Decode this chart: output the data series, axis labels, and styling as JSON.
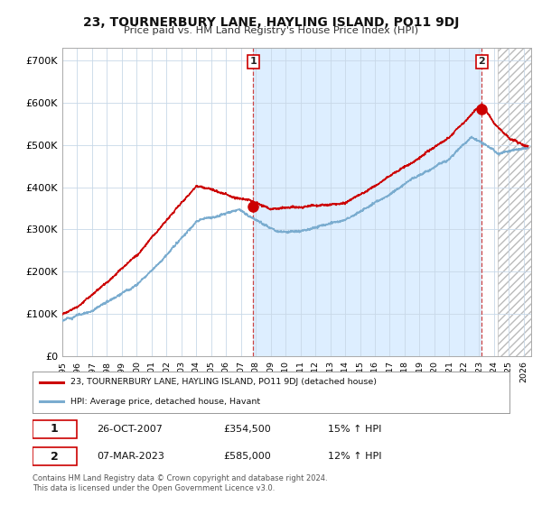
{
  "title": "23, TOURNERBURY LANE, HAYLING ISLAND, PO11 9DJ",
  "subtitle": "Price paid vs. HM Land Registry's House Price Index (HPI)",
  "ylabel_ticks": [
    "£0",
    "£100K",
    "£200K",
    "£300K",
    "£400K",
    "£500K",
    "£600K",
    "£700K"
  ],
  "ytick_values": [
    0,
    100000,
    200000,
    300000,
    400000,
    500000,
    600000,
    700000
  ],
  "ylim": [
    0,
    730000
  ],
  "xlim_start": 1995.0,
  "xlim_end": 2026.5,
  "sale1_x": 2007.82,
  "sale1_y": 354500,
  "sale2_x": 2023.18,
  "sale2_y": 585000,
  "sale1_label": "1",
  "sale2_label": "2",
  "annotation1_date": "26-OCT-2007",
  "annotation1_price": "£354,500",
  "annotation1_hpi": "15% ↑ HPI",
  "annotation2_date": "07-MAR-2023",
  "annotation2_price": "£585,000",
  "annotation2_hpi": "12% ↑ HPI",
  "legend_line1": "23, TOURNERBURY LANE, HAYLING ISLAND, PO11 9DJ (detached house)",
  "legend_line2": "HPI: Average price, detached house, Havant",
  "footer": "Contains HM Land Registry data © Crown copyright and database right 2024.\nThis data is licensed under the Open Government Licence v3.0.",
  "line_color_red": "#cc0000",
  "line_color_blue": "#7aaccf",
  "shade_color": "#ddeeff",
  "grid_color": "#c8d8e8",
  "background_color": "#ffffff",
  "plot_bg_color": "#ffffff",
  "hatched_start": 2024.25
}
